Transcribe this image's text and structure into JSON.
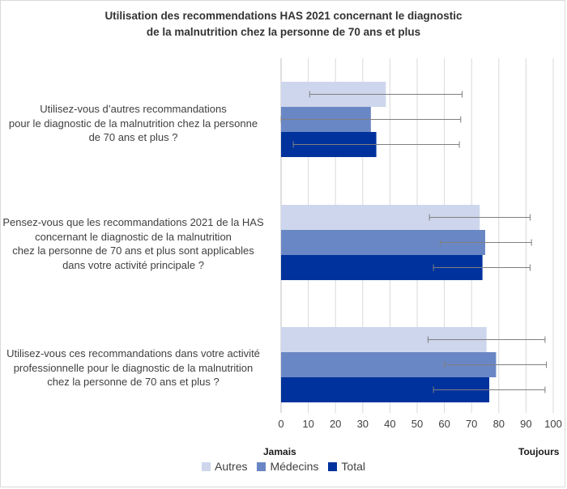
{
  "chart_data": {
    "type": "bar",
    "orientation": "horizontal",
    "title_lines": [
      "Utilisation des recommendations HAS 2021 concernant le diagnostic",
      "de la malnutrition chez la personne de 70 ans et plus"
    ],
    "categories": [
      {
        "lines": [
          "Utilisez-vous d’autres recommandations",
          "pour le diagnostic de la malnutrition chez la personne",
          "de 70 ans et plus ?"
        ]
      },
      {
        "lines": [
          "Pensez-vous que les recommandations 2021 de la HAS",
          "concernant le diagnostic de la malnutrition",
          "chez la personne de 70 ans et plus sont applicables",
          "dans votre activité principale ?"
        ]
      },
      {
        "lines": [
          "Utilisez-vous ces recommandations dans votre activité",
          "professionnelle pour le diagnostic de la malnutrition",
          "chez la personne de 70 ans et plus ?"
        ]
      }
    ],
    "series": [
      {
        "name": "Autres",
        "color": "#cdd6ec",
        "values": [
          38.5,
          73,
          75.5
        ],
        "error_low": [
          10.5,
          54.5,
          54
        ],
        "error_high": [
          66.5,
          91.5,
          97
        ]
      },
      {
        "name": "Médecins",
        "color": "#6a87c5",
        "values": [
          33,
          75,
          79
        ],
        "error_low": [
          0,
          58.5,
          60
        ],
        "error_high": [
          66,
          92,
          97.5
        ]
      },
      {
        "name": "Total",
        "color": "#00329d",
        "values": [
          35,
          74,
          76.5
        ],
        "error_low": [
          4.5,
          56,
          56
        ],
        "error_high": [
          65.5,
          91.5,
          97
        ]
      }
    ],
    "xlim": [
      0,
      100
    ],
    "x_ticks": [
      0,
      10,
      20,
      30,
      40,
      50,
      60,
      70,
      80,
      90,
      100
    ],
    "x_min_label": "Jamais",
    "x_max_label": "Toujours",
    "grid": true,
    "legend_position": "bottom"
  }
}
